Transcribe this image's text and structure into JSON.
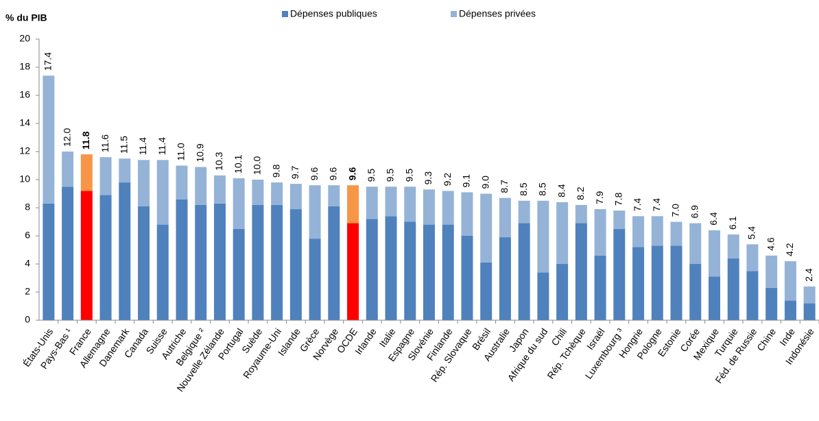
{
  "chart_data": {
    "type": "stacked_bar",
    "y_label": "% du PIB",
    "categories": [
      "États-Unis",
      "Pays-Bas ¹",
      "France",
      "Allemagne",
      "Danemark",
      "Canada",
      "Suisse",
      "Autriche",
      "Belgique ²",
      "Nouvelle Zélande",
      "Portugal",
      "Suède",
      "Royaume-Uni",
      "Islande",
      "Grèce",
      "Norvège",
      "OCDE",
      "Irlande",
      "Italie",
      "Espagne",
      "Slovénie",
      "Finlande",
      "Rép. Slovaque",
      "Brésil",
      "Australie",
      "Japon",
      "Afrique du sud",
      "Chili",
      "Rép. Tchèque",
      "Israël",
      "Luxembourg ³",
      "Hongrie",
      "Pologne",
      "Estonie",
      "Corée",
      "Mexique",
      "Turquie",
      "Féd. de Russie",
      "Chine",
      "Inde",
      "Indonésie"
    ],
    "series": [
      {
        "name": "Dépenses publiques",
        "color": "#4f81bd",
        "values": [
          8.3,
          9.5,
          9.2,
          8.9,
          9.8,
          8.1,
          6.8,
          8.6,
          8.2,
          8.3,
          6.5,
          8.2,
          8.2,
          7.9,
          5.8,
          8.1,
          6.9,
          7.2,
          7.4,
          7.0,
          6.8,
          6.8,
          6.0,
          4.1,
          5.9,
          6.9,
          3.4,
          4.0,
          6.9,
          4.6,
          6.5,
          5.2,
          5.3,
          5.3,
          4.0,
          3.1,
          4.4,
          3.5,
          2.3,
          1.4,
          1.2
        ],
        "colors": [
          "#4f81bd",
          "#4f81bd",
          "#ff0000",
          "#4f81bd",
          "#4f81bd",
          "#4f81bd",
          "#4f81bd",
          "#4f81bd",
          "#4f81bd",
          "#4f81bd",
          "#4f81bd",
          "#4f81bd",
          "#4f81bd",
          "#4f81bd",
          "#4f81bd",
          "#4f81bd",
          "#ff0000",
          "#4f81bd",
          "#4f81bd",
          "#4f81bd",
          "#4f81bd",
          "#4f81bd",
          "#4f81bd",
          "#4f81bd",
          "#4f81bd",
          "#4f81bd",
          "#4f81bd",
          "#4f81bd",
          "#4f81bd",
          "#4f81bd",
          "#4f81bd",
          "#4f81bd",
          "#4f81bd",
          "#4f81bd",
          "#4f81bd",
          "#4f81bd",
          "#4f81bd",
          "#4f81bd",
          "#4f81bd",
          "#4f81bd",
          "#4f81bd"
        ]
      },
      {
        "name": "Dépenses privées",
        "color": "#95b3d7",
        "values": [
          9.1,
          2.5,
          2.6,
          2.7,
          1.7,
          3.3,
          4.6,
          2.4,
          2.7,
          2.0,
          3.6,
          1.8,
          1.6,
          1.8,
          3.8,
          1.5,
          2.7,
          2.3,
          2.1,
          2.5,
          2.5,
          2.4,
          3.1,
          4.9,
          2.8,
          1.6,
          5.1,
          4.4,
          1.3,
          3.3,
          1.3,
          2.2,
          2.1,
          1.7,
          2.9,
          3.3,
          1.7,
          1.9,
          2.3,
          2.8,
          1.2
        ],
        "colors": [
          "#95b3d7",
          "#95b3d7",
          "#f79646",
          "#95b3d7",
          "#95b3d7",
          "#95b3d7",
          "#95b3d7",
          "#95b3d7",
          "#95b3d7",
          "#95b3d7",
          "#95b3d7",
          "#95b3d7",
          "#95b3d7",
          "#95b3d7",
          "#95b3d7",
          "#95b3d7",
          "#f79646",
          "#95b3d7",
          "#95b3d7",
          "#95b3d7",
          "#95b3d7",
          "#95b3d7",
          "#95b3d7",
          "#95b3d7",
          "#95b3d7",
          "#95b3d7",
          "#95b3d7",
          "#95b3d7",
          "#95b3d7",
          "#95b3d7",
          "#95b3d7",
          "#95b3d7",
          "#95b3d7",
          "#95b3d7",
          "#95b3d7",
          "#95b3d7",
          "#95b3d7",
          "#95b3d7",
          "#95b3d7",
          "#95b3d7",
          "#95b3d7"
        ]
      }
    ],
    "total_labels": [
      "17.4",
      "12.0",
      "11.8",
      "11.6",
      "11.5",
      "11.4",
      "11.4",
      "11.0",
      "10.9",
      "10.3",
      "10.1",
      "10.0",
      "9.8",
      "9.7",
      "9.6",
      "9.6",
      "9.6",
      "9.5",
      "9.5",
      "9.5",
      "9.3",
      "9.2",
      "9.1",
      "9.0",
      "8.7",
      "8.5",
      "8.5",
      "8.4",
      "8.2",
      "7.9",
      "7.8",
      "7.4",
      "7.4",
      "7.0",
      "6.9",
      "6.4",
      "6.1",
      "5.4",
      "4.6",
      "4.2",
      "2.4"
    ],
    "ylim": [
      0,
      20
    ],
    "yticks": [
      0,
      2,
      4,
      6,
      8,
      10,
      12,
      14,
      16,
      18,
      20
    ],
    "grid": false
  }
}
